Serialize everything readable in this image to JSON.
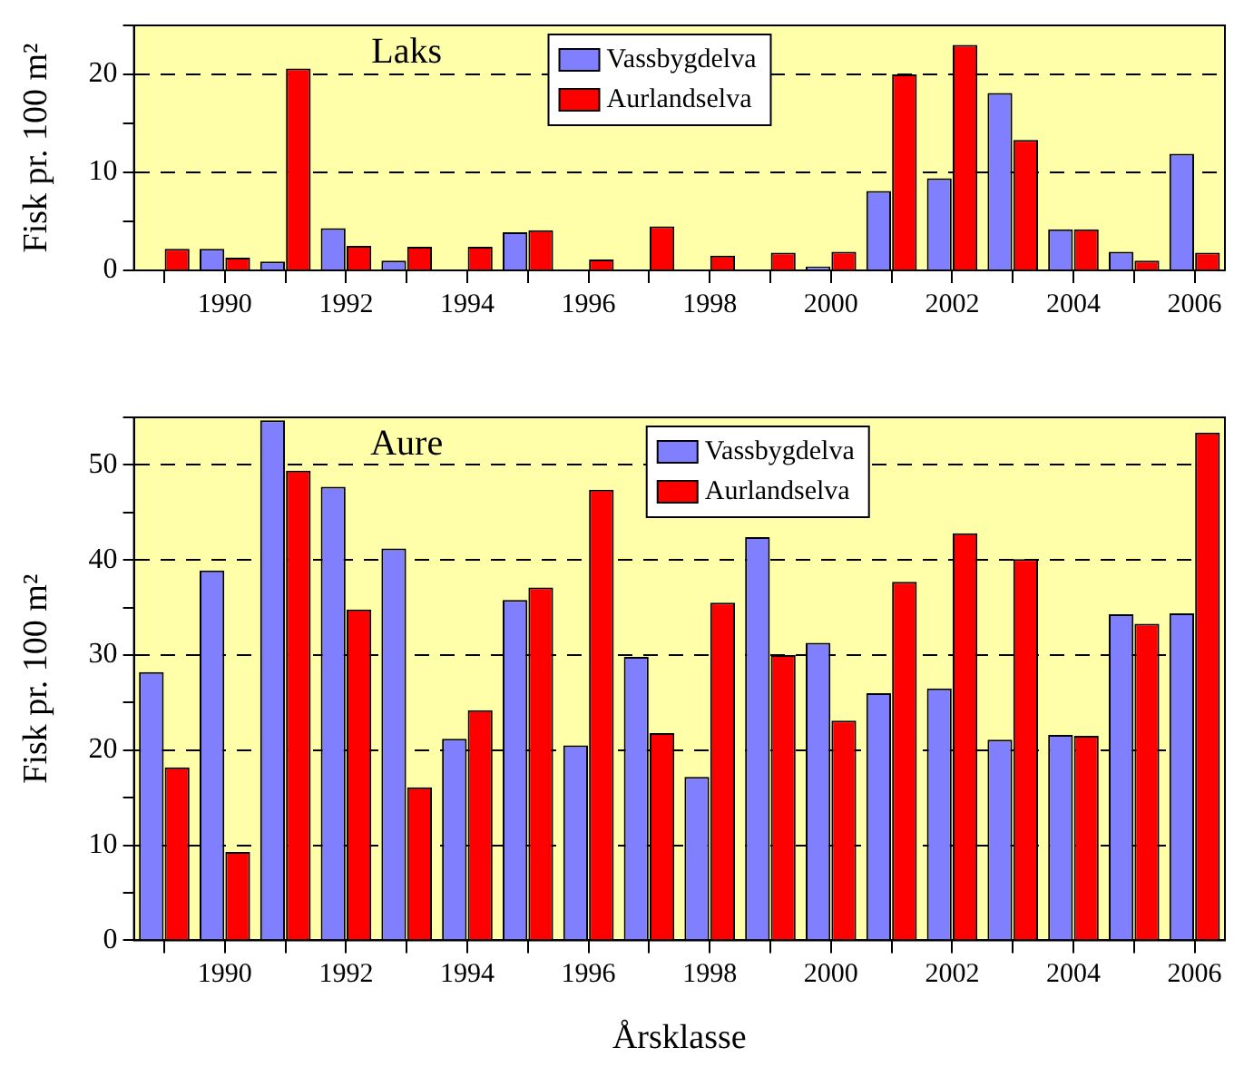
{
  "chart_data": [
    {
      "type": "bar",
      "title": "Laks",
      "ylabel": "Fisk pr. 100 m²",
      "categories": [
        null,
        "1990",
        null,
        "1992",
        null,
        "1994",
        null,
        "1996",
        null,
        "1998",
        null,
        "2000",
        null,
        "2002",
        null,
        "2004",
        null,
        "2006"
      ],
      "series": [
        {
          "name": "Vassbygdelva",
          "color": "#8080ff",
          "values": [
            0,
            2.2,
            0.9,
            4.3,
            1.0,
            0,
            3.9,
            0,
            0,
            0,
            0,
            0.4,
            8.1,
            9.4,
            18.1,
            4.2,
            1.9,
            11.9
          ]
        },
        {
          "name": "Aurlandselva",
          "color": "#ff0000",
          "values": [
            2.2,
            1.3,
            20.6,
            2.5,
            2.4,
            2.4,
            4.1,
            1.1,
            4.5,
            1.5,
            1.8,
            1.9,
            20.0,
            23.0,
            13.3,
            4.2,
            1.0,
            1.8
          ]
        }
      ],
      "ylim": [
        0,
        25
      ],
      "yticks": [
        0,
        {
          "value": 5,
          "label": null
        },
        10,
        {
          "value": 15,
          "label": null
        },
        20,
        {
          "value": 25,
          "label": null
        }
      ],
      "grid": "y",
      "legend": "top"
    },
    {
      "type": "bar",
      "title": "Aure",
      "ylabel": "Fisk pr. 100 m²",
      "xlabel": "Årsklasse",
      "categories": [
        null,
        "1990",
        null,
        "1992",
        null,
        "1994",
        null,
        "1996",
        null,
        "1998",
        null,
        "2000",
        null,
        "2002",
        null,
        "2004",
        null,
        "2006"
      ],
      "series": [
        {
          "name": "Vassbygdelva",
          "color": "#8080ff",
          "values": [
            28.2,
            38.9,
            54.7,
            47.7,
            41.2,
            21.2,
            35.8,
            20.5,
            29.8,
            17.2,
            42.4,
            31.3,
            26.0,
            26.5,
            21.1,
            21.6,
            34.3,
            34.4
          ]
        },
        {
          "name": "Aurlandselva",
          "color": "#ff0000",
          "values": [
            18.2,
            9.3,
            49.4,
            34.8,
            16.1,
            24.2,
            37.1,
            47.4,
            21.8,
            35.5,
            30.0,
            23.1,
            37.7,
            42.8,
            40.1,
            21.5,
            33.3,
            53.4
          ]
        }
      ],
      "ylim": [
        0,
        55
      ],
      "yticks": [
        0,
        {
          "value": 5,
          "label": null
        },
        10,
        {
          "value": 15,
          "label": null
        },
        20,
        {
          "value": 25,
          "label": null
        },
        30,
        {
          "value": 35,
          "label": null
        },
        40,
        {
          "value": 45,
          "label": null
        },
        50,
        {
          "value": 55,
          "label": null
        }
      ],
      "grid": "y",
      "legend": "top"
    }
  ]
}
